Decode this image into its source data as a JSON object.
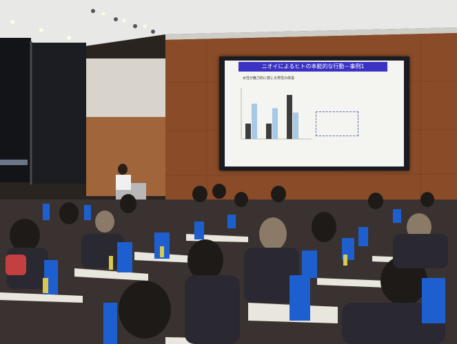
{
  "slide": {
    "title": "ニオイによるヒトの本能的な行動－事例1",
    "subtitle": "女性が魅力的に感じる男性の体臭",
    "notes": [
      "",
      ""
    ],
    "box_lines": [
      "",
      "",
      "",
      ""
    ],
    "footer": ""
  },
  "chart_data": {
    "type": "bar",
    "categories": [
      "",
      "",
      ""
    ],
    "series": [
      {
        "values": [
          0.35,
          0.35,
          1.0
        ]
      },
      {
        "values": [
          0.8,
          0.7,
          0.6
        ]
      }
    ],
    "colors": [
      "#3c3c3c",
      "#a8c8e8"
    ]
  }
}
